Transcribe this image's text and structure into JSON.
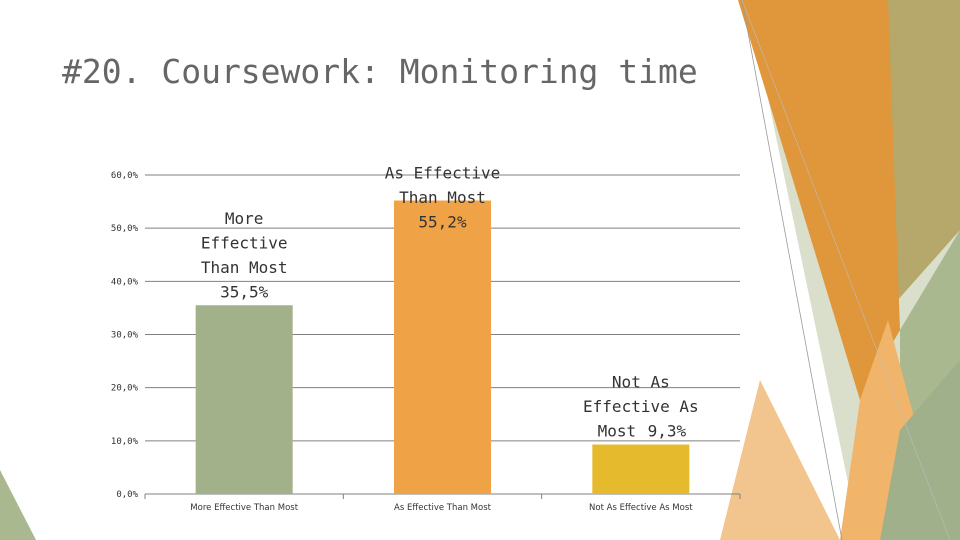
{
  "slide": {
    "title": "#20. Coursework: Monitoring time",
    "colors": {
      "background": "#ffffff",
      "title": "#666666",
      "deco_orange_dark": "#E0963A",
      "deco_olive": "#B5A86A",
      "deco_sage": "#A9B88F",
      "deco_sage_light": "#D9DFCB",
      "deco_peach": "#F0B56A",
      "deco_mid_orange": "#E9A24C"
    }
  },
  "chart_data": {
    "type": "bar",
    "title": "",
    "xlabel": "",
    "ylabel": "",
    "categories": [
      "More Effective Than Most",
      "As Effective Than Most",
      "Not As Effective As Most"
    ],
    "values": [
      35.5,
      55.2,
      9.3
    ],
    "value_labels": [
      "35,5%",
      "55,2%",
      "9,3%"
    ],
    "data_label_names": [
      [
        "More",
        "Effective",
        "Than Most"
      ],
      [
        "As Effective",
        "Than Most"
      ],
      [
        "Not As",
        "Effective As",
        "Most"
      ]
    ],
    "bar_colors": [
      "#A3B18A",
      "#F0A346",
      "#E5BA2C"
    ],
    "ylim": [
      0,
      60
    ],
    "yticks": [
      0,
      10,
      20,
      30,
      40,
      50,
      60
    ],
    "ytick_labels": [
      "0,0%",
      "10,0%",
      "20,0%",
      "30,0%",
      "40,0%",
      "50,0%",
      "60,0%"
    ],
    "grid": true,
    "legend": "none"
  }
}
